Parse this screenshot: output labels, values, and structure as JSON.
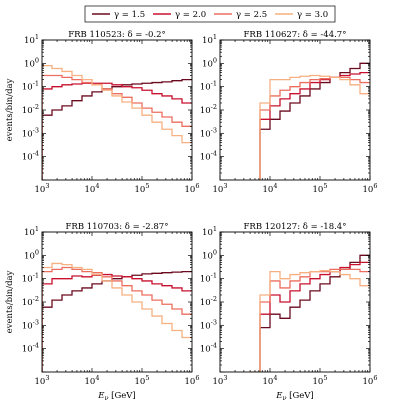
{
  "chart_data": {
    "type": "line",
    "step": true,
    "xlabel": "E_ν [GeV]",
    "ylabel": "events/bin/day",
    "xscale": "log",
    "yscale": "log",
    "xlim": [
      1000,
      1000000
    ],
    "ylim": [
      1e-05,
      10
    ],
    "grid": false,
    "legend_position": "top",
    "x_ticks": [
      "10^3",
      "10^4",
      "10^5",
      "10^6"
    ],
    "y_ticks": [
      "10^-4",
      "10^-3",
      "10^-2",
      "10^-1",
      "10^0",
      "10^1"
    ],
    "bin_edges_log10": [
      3.0,
      3.2,
      3.4,
      3.6,
      3.8,
      4.0,
      4.2,
      4.4,
      4.6,
      4.8,
      5.0,
      5.2,
      5.4,
      5.6,
      5.8,
      6.0
    ],
    "series_styles": [
      {
        "name": "γ = 1.5",
        "color": "#6b0a1e"
      },
      {
        "name": "γ = 2.0",
        "color": "#c8102e"
      },
      {
        "name": "γ = 2.5",
        "color": "#ec6e5f"
      },
      {
        "name": "γ = 3.0",
        "color": "#f6b081"
      }
    ],
    "panels": [
      {
        "title": "FRB 110523:  δ = -0.2°",
        "series": [
          {
            "name": "γ = 1.5",
            "values": [
              0.006,
              0.01,
              0.015,
              0.025,
              0.04,
              0.06,
              0.08,
              0.1,
              0.12,
              0.13,
              0.14,
              0.15,
              0.16,
              0.18,
              0.2
            ]
          },
          {
            "name": "γ = 2.0",
            "values": [
              0.08,
              0.1,
              0.12,
              0.13,
              0.14,
              0.14,
              0.14,
              0.12,
              0.1,
              0.09,
              0.07,
              0.05,
              0.04,
              0.03,
              0.02
            ]
          },
          {
            "name": "γ = 2.5",
            "values": [
              0.3,
              0.3,
              0.25,
              0.2,
              0.15,
              0.12,
              0.08,
              0.05,
              0.035,
              0.02,
              0.012,
              0.008,
              0.005,
              0.003,
              0.002
            ]
          },
          {
            "name": "γ = 3.0",
            "values": [
              0.8,
              0.6,
              0.45,
              0.3,
              0.2,
              0.12,
              0.07,
              0.04,
              0.022,
              0.012,
              0.006,
              0.003,
              0.0015,
              0.0008,
              0.0004
            ]
          }
        ]
      },
      {
        "title": "FRB 110627:  δ = -44.7°",
        "series": [
          {
            "name": "γ = 1.5",
            "values": [
              null,
              null,
              null,
              null,
              0.0015,
              0.004,
              0.009,
              0.02,
              0.04,
              0.08,
              0.15,
              0.25,
              0.4,
              0.6,
              1.0
            ]
          },
          {
            "name": "γ = 2.0",
            "values": [
              null,
              null,
              null,
              null,
              0.004,
              0.015,
              0.03,
              0.05,
              0.08,
              0.15,
              0.2,
              0.25,
              0.3,
              0.35,
              0.4
            ]
          },
          {
            "name": "γ = 2.5",
            "values": [
              null,
              null,
              null,
              null,
              0.01,
              0.04,
              0.07,
              0.1,
              0.15,
              0.2,
              0.22,
              0.25,
              0.25,
              0.2,
              0.15
            ]
          },
          {
            "name": "γ = 3.0",
            "values": [
              null,
              null,
              null,
              null,
              0.02,
              0.2,
              0.2,
              0.25,
              0.28,
              0.3,
              0.28,
              0.25,
              0.2,
              0.12,
              0.05
            ]
          }
        ]
      },
      {
        "title": "FRB 110703:  δ = -2.87°",
        "series": [
          {
            "name": "γ = 1.5",
            "values": [
              0.006,
              0.012,
              0.02,
              0.03,
              0.04,
              0.06,
              0.08,
              0.1,
              0.12,
              0.14,
              0.16,
              0.17,
              0.18,
              0.19,
              0.2
            ]
          },
          {
            "name": "γ = 2.0",
            "values": [
              0.06,
              0.1,
              0.1,
              0.13,
              0.12,
              0.14,
              0.15,
              0.13,
              0.12,
              0.1,
              0.08,
              0.06,
              0.05,
              0.04,
              0.03
            ]
          },
          {
            "name": "γ = 2.5",
            "values": [
              0.2,
              0.25,
              0.3,
              0.25,
              0.2,
              0.18,
              0.12,
              0.08,
              0.05,
              0.03,
              0.02,
              0.012,
              0.008,
              0.005,
              0.003
            ]
          },
          {
            "name": "γ = 3.0",
            "values": [
              0.3,
              0.45,
              0.4,
              0.3,
              0.25,
              0.15,
              0.08,
              0.04,
              0.02,
              0.01,
              0.005,
              0.0025,
              0.0012,
              0.0006,
              0.0003
            ]
          }
        ]
      },
      {
        "title": "FRB 120127:  δ = -18.4°",
        "series": [
          {
            "name": "γ = 1.5",
            "values": [
              null,
              null,
              null,
              null,
              0.0008,
              0.003,
              0.002,
              0.006,
              0.012,
              0.03,
              0.06,
              0.12,
              0.25,
              0.5,
              1.0
            ]
          },
          {
            "name": "γ = 2.0",
            "values": [
              null,
              null,
              null,
              null,
              0.003,
              0.02,
              0.01,
              0.03,
              0.06,
              0.1,
              0.15,
              0.2,
              0.3,
              0.4,
              0.5
            ]
          },
          {
            "name": "γ = 2.5",
            "values": [
              null,
              null,
              null,
              null,
              0.01,
              0.08,
              0.04,
              0.08,
              0.12,
              0.2,
              0.2,
              0.25,
              0.25,
              0.25,
              0.2
            ]
          },
          {
            "name": "γ = 3.0",
            "values": [
              null,
              null,
              null,
              1e-05,
              0.02,
              0.2,
              0.1,
              0.15,
              0.18,
              0.2,
              0.22,
              0.2,
              0.15,
              0.1,
              0.05
            ]
          }
        ]
      }
    ]
  }
}
